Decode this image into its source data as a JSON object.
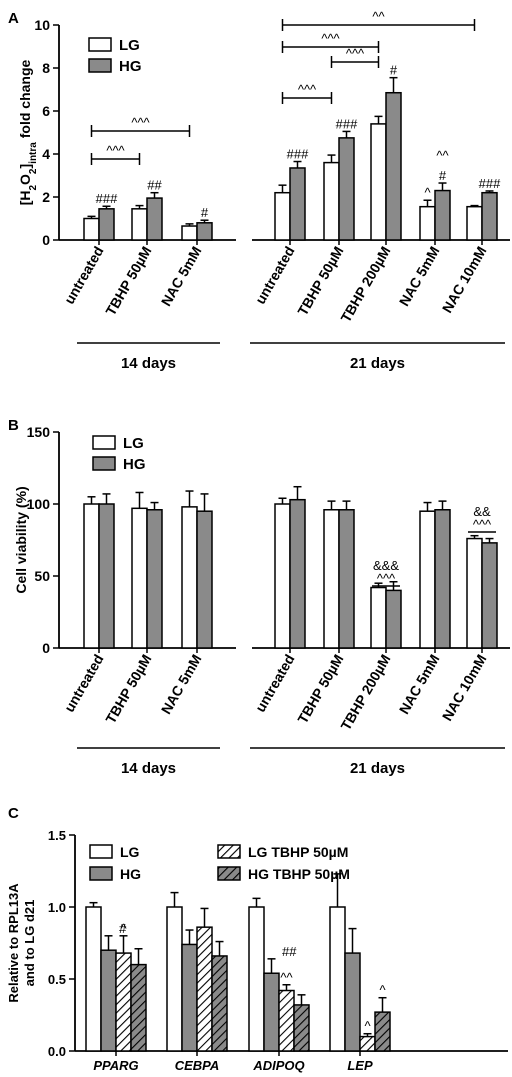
{
  "chart_data": [
    {
      "type": "bar",
      "panel_label": "A",
      "ylabel_parts": [
        "[H",
        "2",
        "O",
        "2",
        "]",
        "intra",
        " fold change"
      ],
      "ylim": [
        0,
        10
      ],
      "yticks": [
        "0",
        "2",
        "4",
        "6",
        "8",
        "10"
      ],
      "legend_location": "top-left",
      "series": [
        {
          "name": "LG",
          "color": "#ffffff"
        },
        {
          "name": "HG",
          "color": "#8a8a8a"
        }
      ],
      "groups": [
        {
          "label": "14 days",
          "categories": [
            {
              "label": "untreated",
              "values": [
                1.0,
                1.45
              ],
              "errors": [
                0.1,
                0.12
              ],
              "annotations": [
                "",
                "###"
              ]
            },
            {
              "label": "TBHP 50µM",
              "values": [
                1.45,
                1.95
              ],
              "errors": [
                0.15,
                0.25
              ],
              "annotations": [
                "",
                "##"
              ]
            },
            {
              "label": "NAC 5mM",
              "values": [
                0.65,
                0.8
              ],
              "errors": [
                0.1,
                0.12
              ],
              "annotations": [
                "",
                "#"
              ]
            }
          ]
        },
        {
          "label": "21 days",
          "categories": [
            {
              "label": "untreated",
              "values": [
                2.2,
                3.35
              ],
              "errors": [
                0.35,
                0.3
              ],
              "annotations": [
                "",
                "###"
              ]
            },
            {
              "label": "TBHP 50µM",
              "values": [
                3.6,
                4.75
              ],
              "errors": [
                0.35,
                0.3
              ],
              "annotations": [
                "",
                "###"
              ]
            },
            {
              "label": "TBHP 200µM",
              "values": [
                5.4,
                6.85
              ],
              "errors": [
                0.35,
                0.7
              ],
              "annotations": [
                "",
                "#"
              ]
            },
            {
              "label": "NAC 5mM",
              "values": [
                1.55,
                2.3
              ],
              "errors": [
                0.3,
                0.35
              ],
              "annotations": [
                "^",
                "#"
              ]
            },
            {
              "label": "NAC 10mM",
              "values": [
                1.55,
                2.2
              ],
              "errors": [
                0.05,
                0.08
              ],
              "annotations": [
                "",
                "###"
              ]
            }
          ]
        }
      ],
      "comparisons": [
        {
          "from": [
            0,
            0
          ],
          "to": [
            0,
            1
          ],
          "label": "^^^"
        },
        {
          "from": [
            0,
            0
          ],
          "to": [
            0,
            2
          ],
          "label": "^^^"
        },
        {
          "from": [
            1,
            0
          ],
          "to": [
            1,
            1
          ],
          "label": "^^^"
        },
        {
          "from": [
            1,
            1
          ],
          "to": [
            1,
            2
          ],
          "label": "^^^"
        },
        {
          "from": [
            1,
            0
          ],
          "to": [
            1,
            2
          ],
          "label": "^^^"
        },
        {
          "from": [
            1,
            0
          ],
          "to": [
            1,
            4
          ],
          "label": "^^"
        }
      ],
      "extra_annotations": [
        {
          "group": 1,
          "category": 3,
          "label": "^^"
        }
      ]
    },
    {
      "type": "bar",
      "panel_label": "B",
      "ylabel_parts": [
        "Cell viability (%)"
      ],
      "ylim": [
        0,
        150
      ],
      "yticks": [
        "0",
        "50",
        "100",
        "150"
      ],
      "legend_location": "top-left",
      "series": [
        {
          "name": "LG",
          "color": "#ffffff"
        },
        {
          "name": "HG",
          "color": "#8a8a8a"
        }
      ],
      "groups": [
        {
          "label": "14 days",
          "categories": [
            {
              "label": "untreated",
              "values": [
                100,
                100
              ],
              "errors": [
                5,
                7
              ],
              "annotations": [
                "",
                ""
              ]
            },
            {
              "label": "TBHP 50µM",
              "values": [
                97,
                96
              ],
              "errors": [
                11,
                5
              ],
              "annotations": [
                "",
                ""
              ]
            },
            {
              "label": "NAC 5mM",
              "values": [
                98,
                95
              ],
              "errors": [
                11,
                12
              ],
              "annotations": [
                "",
                ""
              ]
            }
          ]
        },
        {
          "label": "21 days",
          "categories": [
            {
              "label": "untreated",
              "values": [
                100,
                103
              ],
              "errors": [
                4,
                9
              ],
              "annotations": [
                "",
                ""
              ]
            },
            {
              "label": "TBHP 50µM",
              "values": [
                96,
                96
              ],
              "errors": [
                6,
                6
              ],
              "annotations": [
                "",
                ""
              ]
            },
            {
              "label": "TBHP 200µM",
              "values": [
                42,
                40
              ],
              "errors": [
                3,
                6
              ],
              "annotations": [
                "",
                ""
              ]
            },
            {
              "label": "NAC 5mM",
              "values": [
                95,
                96
              ],
              "errors": [
                6,
                6
              ],
              "annotations": [
                "",
                ""
              ]
            },
            {
              "label": "NAC 10mM",
              "values": [
                76,
                73
              ],
              "errors": [
                2,
                3
              ],
              "annotations": [
                "",
                ""
              ]
            }
          ]
        }
      ],
      "pair_annotations": [
        {
          "group": 1,
          "category": 2,
          "lines": [
            "&&&",
            "^^^"
          ]
        },
        {
          "group": 1,
          "category": 4,
          "lines": [
            "&&",
            "^^^"
          ]
        }
      ]
    },
    {
      "type": "bar",
      "panel_label": "C",
      "ylabel_lines": [
        "Relative to RPL13A",
        "and to LG d21"
      ],
      "ylim": [
        0,
        1.5
      ],
      "yticks": [
        "0.0",
        "0.5",
        "1.0",
        "1.5"
      ],
      "legend_location": "top",
      "series": [
        {
          "name": "LG",
          "color": "#ffffff",
          "hatch": false
        },
        {
          "name": "HG",
          "color": "#8a8a8a",
          "hatch": false
        },
        {
          "name": "LG TBHP 50µM",
          "color": "#ffffff",
          "hatch": true
        },
        {
          "name": "HG TBHP 50µM",
          "color": "#8a8a8a",
          "hatch": true
        }
      ],
      "categories": [
        {
          "label": "PPARG",
          "values": [
            1.0,
            0.7,
            0.68,
            0.6
          ],
          "errors": [
            0.03,
            0.1,
            0.12,
            0.11
          ],
          "annotations": [
            "",
            "#",
            "^",
            ""
          ]
        },
        {
          "label": "CEBPA",
          "values": [
            1.0,
            0.74,
            0.86,
            0.66
          ],
          "errors": [
            0.1,
            0.1,
            0.13,
            0.1
          ],
          "annotations": [
            "",
            "",
            "",
            ""
          ]
        },
        {
          "label": "ADIPOQ",
          "values": [
            1.0,
            0.54,
            0.42,
            0.32
          ],
          "errors": [
            0.06,
            0.1,
            0.04,
            0.07
          ],
          "annotations": [
            "",
            "##",
            "^^",
            ""
          ]
        },
        {
          "label": "LEP",
          "values": [
            1.0,
            0.68,
            0.1,
            0.27
          ],
          "errors": [
            0.23,
            0.17,
            0.02,
            0.1
          ],
          "annotations": [
            "",
            "",
            "^",
            "^"
          ]
        }
      ]
    }
  ]
}
